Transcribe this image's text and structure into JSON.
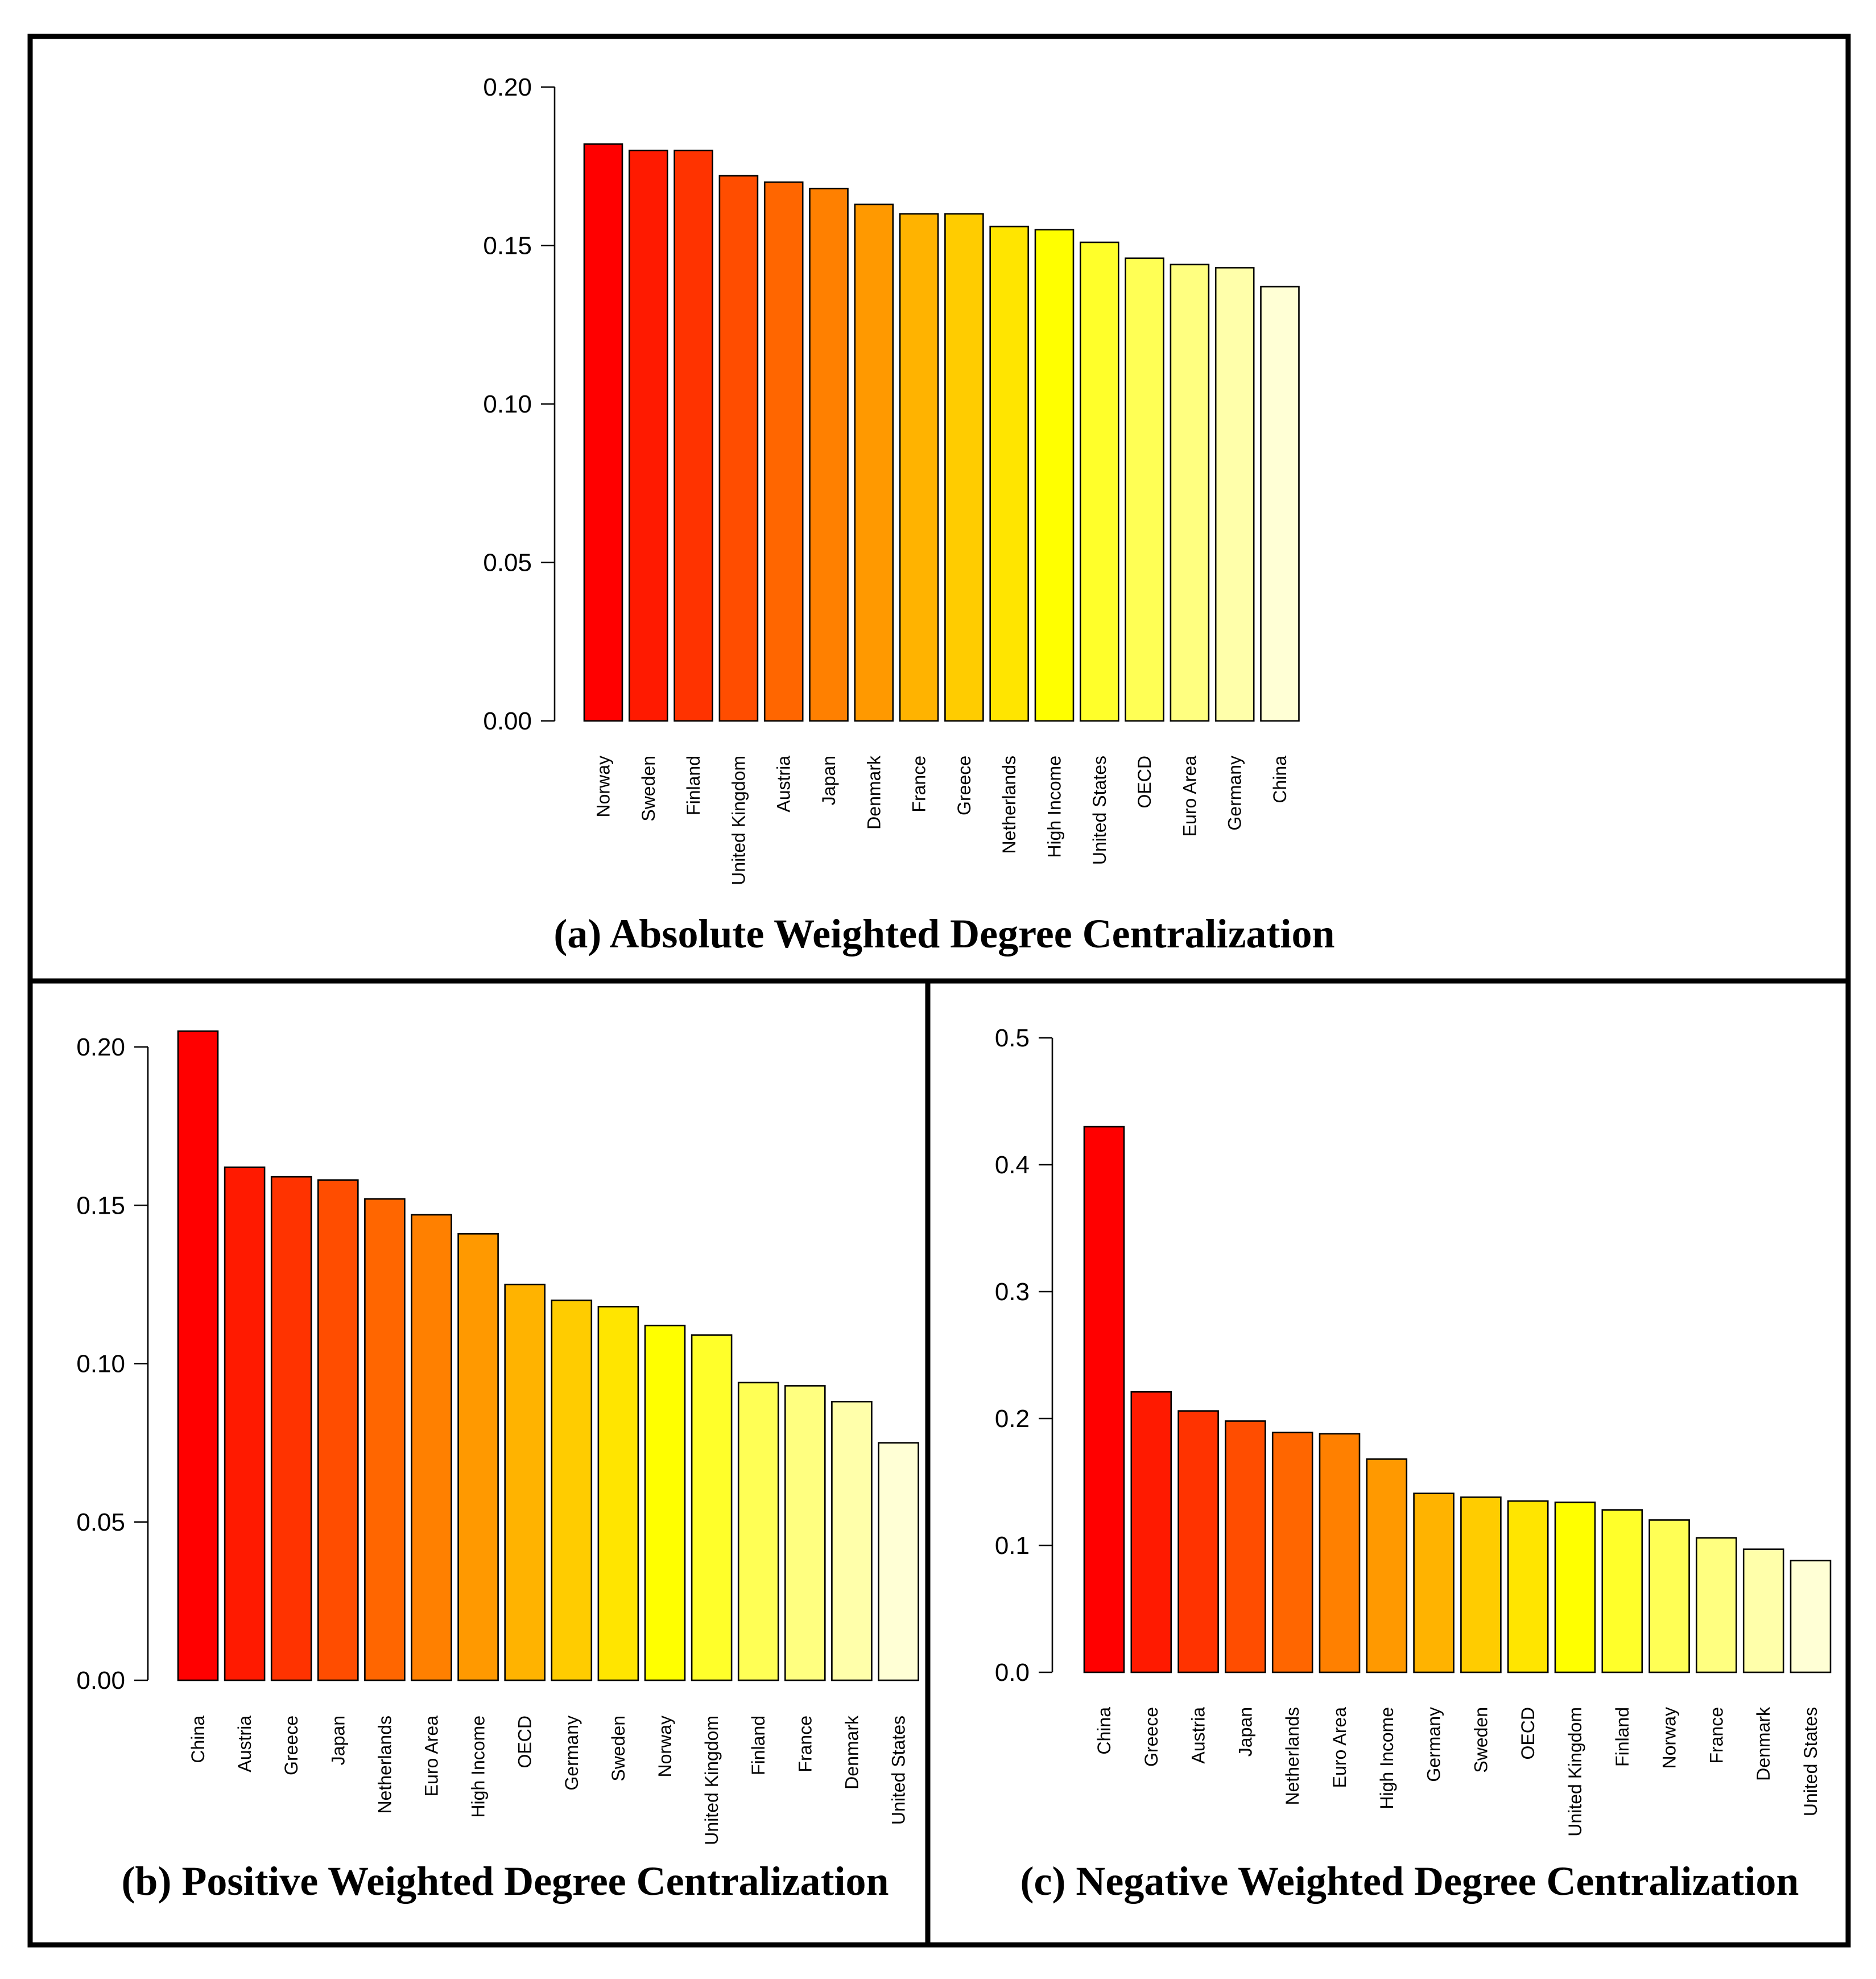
{
  "chart_data": [
    {
      "id": "a",
      "type": "bar",
      "title": "(a) Absolute Weighted Degree Centralization",
      "categories": [
        "Norway",
        "Sweden",
        "Finland",
        "United Kingdom",
        "Austria",
        "Japan",
        "Denmark",
        "France",
        "Greece",
        "Netherlands",
        "High Income",
        "United States",
        "OECD",
        "Euro Area",
        "Germany",
        "China"
      ],
      "values": [
        0.182,
        0.18,
        0.18,
        0.172,
        0.17,
        0.168,
        0.163,
        0.16,
        0.16,
        0.156,
        0.155,
        0.151,
        0.146,
        0.144,
        0.143,
        0.137
      ],
      "colors": [
        "#FF0000",
        "#FF1A00",
        "#FF3300",
        "#FF4D00",
        "#FF6600",
        "#FF8000",
        "#FF9900",
        "#FFB300",
        "#FFCC00",
        "#FFE500",
        "#FFFF00",
        "#FFFF2A",
        "#FFFF55",
        "#FFFF80",
        "#FFFFAA",
        "#FFFFD5"
      ],
      "yticks": [
        "0.00",
        "0.05",
        "0.10",
        "0.15",
        "0.20"
      ],
      "ylim": [
        0,
        0.2
      ],
      "xlabel": "",
      "ylabel": ""
    },
    {
      "id": "b",
      "type": "bar",
      "title": "(b) Positive Weighted Degree Centralization",
      "categories": [
        "China",
        "Austria",
        "Greece",
        "Japan",
        "Netherlands",
        "Euro Area",
        "High Income",
        "OECD",
        "Germany",
        "Sweden",
        "Norway",
        "United Kingdom",
        "Finland",
        "France",
        "Denmark",
        "United States"
      ],
      "values": [
        0.205,
        0.162,
        0.159,
        0.158,
        0.152,
        0.147,
        0.141,
        0.125,
        0.12,
        0.118,
        0.112,
        0.109,
        0.094,
        0.093,
        0.088,
        0.075
      ],
      "colors": [
        "#FF0000",
        "#FF1A00",
        "#FF3300",
        "#FF4D00",
        "#FF6600",
        "#FF8000",
        "#FF9900",
        "#FFB300",
        "#FFCC00",
        "#FFE500",
        "#FFFF00",
        "#FFFF2A",
        "#FFFF55",
        "#FFFF80",
        "#FFFFAA",
        "#FFFFD5"
      ],
      "yticks": [
        "0.00",
        "0.05",
        "0.10",
        "0.15",
        "0.20"
      ],
      "ylim": [
        0,
        0.2
      ],
      "xlabel": "",
      "ylabel": ""
    },
    {
      "id": "c",
      "type": "bar",
      "title": "(c) Negative Weighted Degree Centralization",
      "categories": [
        "China",
        "Greece",
        "Austria",
        "Japan",
        "Netherlands",
        "Euro Area",
        "High Income",
        "Germany",
        "Sweden",
        "OECD",
        "United Kingdom",
        "Finland",
        "Norway",
        "France",
        "Denmark",
        "United States"
      ],
      "values": [
        0.43,
        0.221,
        0.206,
        0.198,
        0.189,
        0.188,
        0.168,
        0.141,
        0.138,
        0.135,
        0.134,
        0.128,
        0.12,
        0.106,
        0.097,
        0.088
      ],
      "colors": [
        "#FF0000",
        "#FF1A00",
        "#FF3300",
        "#FF4D00",
        "#FF6600",
        "#FF8000",
        "#FF9900",
        "#FFB300",
        "#FFCC00",
        "#FFE500",
        "#FFFF00",
        "#FFFF2A",
        "#FFFF55",
        "#FFFF80",
        "#FFFFAA",
        "#FFFFD5"
      ],
      "yticks": [
        "0.0",
        "0.1",
        "0.2",
        "0.3",
        "0.4",
        "0.5"
      ],
      "ylim": [
        0,
        0.5
      ],
      "xlabel": "",
      "ylabel": ""
    }
  ]
}
